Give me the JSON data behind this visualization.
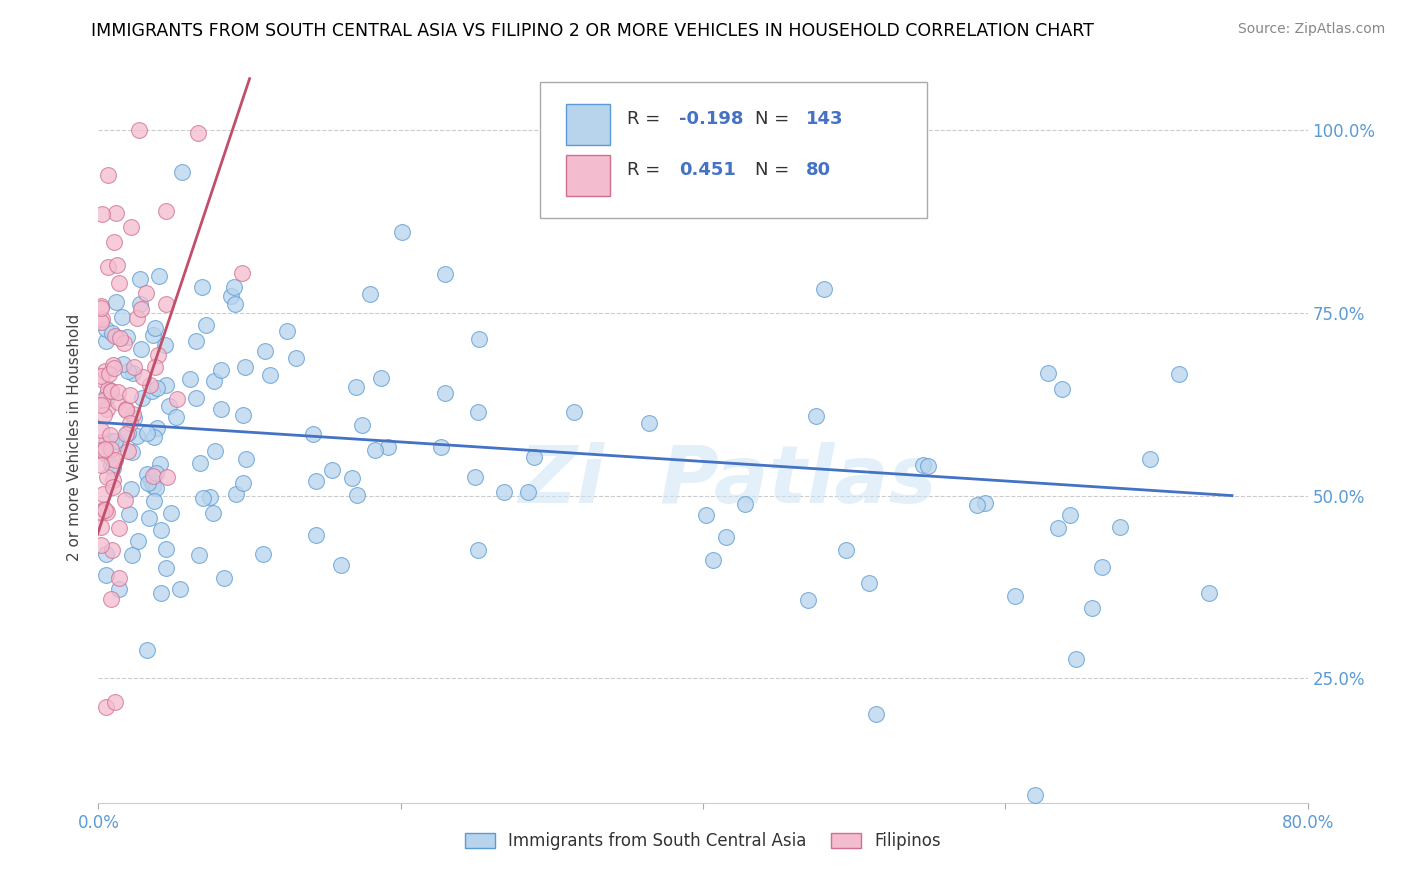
{
  "title": "IMMIGRANTS FROM SOUTH CENTRAL ASIA VS FILIPINO 2 OR MORE VEHICLES IN HOUSEHOLD CORRELATION CHART",
  "source": "Source: ZipAtlas.com",
  "ylabel": "2 or more Vehicles in Household",
  "xlim": [
    0.0,
    0.8
  ],
  "ylim": [
    0.08,
    1.08
  ],
  "xtick_positions": [
    0.0,
    0.2,
    0.4,
    0.6,
    0.8
  ],
  "ytick_positions": [
    0.25,
    0.5,
    0.75,
    1.0
  ],
  "legend_blue_r": "-0.198",
  "legend_blue_n": "143",
  "legend_pink_r": "0.451",
  "legend_pink_n": "80",
  "blue_fill": "#b8d4ed",
  "blue_edge": "#5b9bd5",
  "pink_fill": "#f4bccf",
  "pink_edge": "#d07090",
  "blue_line_color": "#4472c4",
  "pink_line_color": "#c0506a",
  "blue_trend_x": [
    0.0,
    0.75
  ],
  "blue_trend_y": [
    0.6,
    0.5
  ],
  "pink_trend_x": [
    -0.005,
    0.1
  ],
  "pink_trend_y": [
    0.42,
    1.07
  ],
  "grid_color": "#cccccc",
  "tick_color": "#aaaaaa",
  "right_tick_color": "#5b9bd5",
  "title_fontsize": 12.5,
  "source_fontsize": 10,
  "axis_label_fontsize": 11,
  "tick_fontsize": 12
}
